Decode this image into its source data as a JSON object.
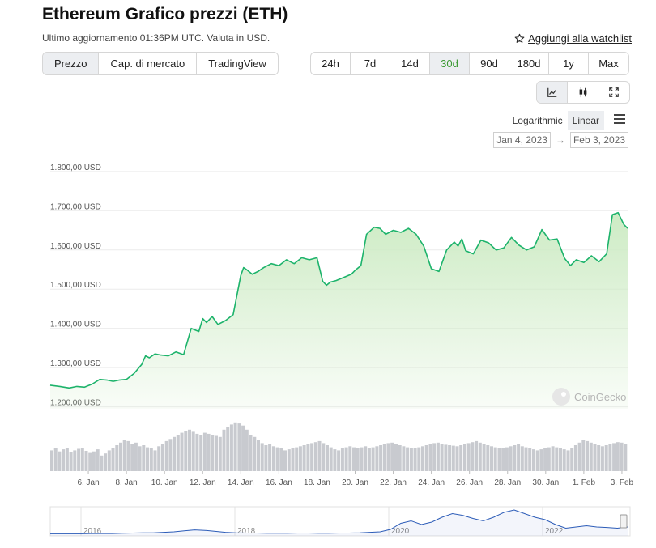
{
  "header": {
    "title": "Ethereum Grafico prezzi (ETH)",
    "subtitle": "Ultimo aggiornamento 01:36PM UTC. Valuta in USD.",
    "watchlist_label": "Aggiungi alla watchlist"
  },
  "view_tabs": [
    "Prezzo",
    "Cap. di mercato",
    "TradingView"
  ],
  "active_view": "Prezzo",
  "ranges": [
    "24h",
    "7d",
    "14d",
    "30d",
    "90d",
    "180d",
    "1y",
    "Max"
  ],
  "active_range": "30d",
  "scale_options": {
    "log": "Logarithmic",
    "linear": "Linear"
  },
  "active_scale": "Linear",
  "date_range": {
    "from": "Jan 4, 2023",
    "arrow": "→",
    "to": "Feb 3, 2023"
  },
  "watermark": "CoinGecko",
  "colors": {
    "line": "#1db36b",
    "fill_top": "#cdebc4",
    "volume": "#c8cacf",
    "navigator": "#2c5cb8",
    "accent_green": "#3d9b35"
  },
  "chart_data": {
    "type": "area",
    "y_tick_labels": [
      "1.800,00 USD",
      "1.700,00 USD",
      "1.600,00 USD",
      "1.500,00 USD",
      "1.400,00 USD",
      "1.300,00 USD",
      "1.200,00 USD"
    ],
    "y_ticks": [
      1800,
      1700,
      1600,
      1500,
      1400,
      1300,
      1200
    ],
    "ylim": [
      1195,
      1810
    ],
    "x_tick_labels": [
      "6. Jan",
      "8. Jan",
      "10. Jan",
      "12. Jan",
      "14. Jan",
      "16. Jan",
      "18. Jan",
      "20. Jan",
      "22. Jan",
      "24. Jan",
      "26. Jan",
      "28. Jan",
      "30. Jan",
      "1. Feb",
      "3. Feb"
    ],
    "x_tick_days": [
      2,
      4,
      6,
      8,
      10,
      12,
      14,
      16,
      18,
      20,
      22,
      24,
      26,
      28,
      30
    ],
    "xlim_days": [
      0,
      30.3
    ],
    "series": [
      {
        "x_days": [
          0,
          0.5,
          1,
          1.4,
          1.8,
          2.2,
          2.6,
          3,
          3.3,
          3.6,
          4,
          4.4,
          4.8,
          5,
          5.2,
          5.5,
          5.8,
          6.2,
          6.6,
          7,
          7.4,
          7.8,
          8,
          8.2,
          8.5,
          8.8,
          9.2,
          9.6,
          10,
          10.15,
          10.3,
          10.6,
          10.9,
          11.2,
          11.6,
          12,
          12.4,
          12.8,
          13.2,
          13.6,
          14,
          14.3,
          14.5,
          14.7,
          15,
          15.4,
          15.8,
          16,
          16.3,
          16.6,
          17,
          17.3,
          17.6,
          18,
          18.4,
          18.8,
          19.2,
          19.6,
          20,
          20.4,
          20.8,
          21.2,
          21.4,
          21.6,
          21.8,
          22.2,
          22.6,
          23,
          23.4,
          23.8,
          24.2,
          24.6,
          25,
          25.4,
          25.8,
          26.2,
          26.6,
          27,
          27.3,
          27.6,
          28,
          28.4,
          28.8,
          29.2,
          29.5,
          29.8,
          30.1,
          30.3
        ],
        "y": [
          1255,
          1252,
          1248,
          1252,
          1250,
          1258,
          1270,
          1268,
          1265,
          1268,
          1270,
          1285,
          1308,
          1330,
          1325,
          1335,
          1332,
          1330,
          1340,
          1333,
          1400,
          1392,
          1425,
          1415,
          1430,
          1410,
          1420,
          1435,
          1535,
          1555,
          1550,
          1538,
          1545,
          1555,
          1565,
          1560,
          1575,
          1565,
          1580,
          1575,
          1580,
          1520,
          1510,
          1518,
          1522,
          1530,
          1538,
          1548,
          1560,
          1640,
          1658,
          1655,
          1640,
          1650,
          1645,
          1655,
          1640,
          1610,
          1552,
          1545,
          1600,
          1620,
          1610,
          1628,
          1598,
          1590,
          1625,
          1618,
          1600,
          1605,
          1632,
          1612,
          1600,
          1608,
          1652,
          1625,
          1628,
          1578,
          1560,
          1575,
          1568,
          1585,
          1570,
          1590,
          1690,
          1695,
          1665,
          1655
        ]
      }
    ],
    "volume": [
      40,
      45,
      38,
      42,
      44,
      36,
      40,
      43,
      45,
      39,
      35,
      38,
      42,
      30,
      34,
      40,
      44,
      50,
      55,
      60,
      58,
      52,
      55,
      48,
      50,
      46,
      44,
      40,
      48,
      52,
      58,
      62,
      66,
      70,
      74,
      78,
      80,
      76,
      72,
      70,
      74,
      72,
      70,
      68,
      66,
      80,
      85,
      90,
      94,
      92,
      88,
      80,
      70,
      66,
      60,
      54,
      50,
      52,
      48,
      46,
      44,
      40,
      42,
      44,
      46,
      48,
      50,
      52,
      54,
      56,
      58,
      54,
      50,
      46,
      42,
      40,
      44,
      46,
      48,
      46,
      44,
      46,
      48,
      45,
      46,
      48,
      50,
      52,
      54,
      55,
      52,
      50,
      48,
      46,
      44,
      45,
      46,
      48,
      50,
      52,
      54,
      55,
      53,
      51,
      50,
      49,
      48,
      50,
      52,
      54,
      56,
      58,
      55,
      52,
      50,
      48,
      46,
      44,
      45,
      46,
      48,
      50,
      52,
      48,
      46,
      44,
      42,
      40,
      42,
      44,
      46,
      48,
      46,
      44,
      42,
      40,
      45,
      50,
      55,
      60,
      58,
      55,
      52,
      50,
      48,
      50,
      52,
      54,
      56,
      55,
      52
    ],
    "navigator": {
      "year_labels": [
        "2016",
        "2018",
        "2020",
        "2022"
      ],
      "series": [
        0.02,
        0.02,
        0.02,
        0.02,
        0.03,
        0.03,
        0.03,
        0.04,
        0.05,
        0.06,
        0.06,
        0.08,
        0.1,
        0.14,
        0.18,
        0.16,
        0.12,
        0.08,
        0.06,
        0.05,
        0.05,
        0.04,
        0.04,
        0.04,
        0.05,
        0.05,
        0.04,
        0.04,
        0.05,
        0.05,
        0.06,
        0.08,
        0.1,
        0.2,
        0.45,
        0.55,
        0.4,
        0.5,
        0.7,
        0.85,
        0.78,
        0.65,
        0.55,
        0.7,
        0.9,
        1.0,
        0.85,
        0.7,
        0.6,
        0.4,
        0.25,
        0.3,
        0.35,
        0.3,
        0.28,
        0.25,
        0.3
      ]
    }
  }
}
